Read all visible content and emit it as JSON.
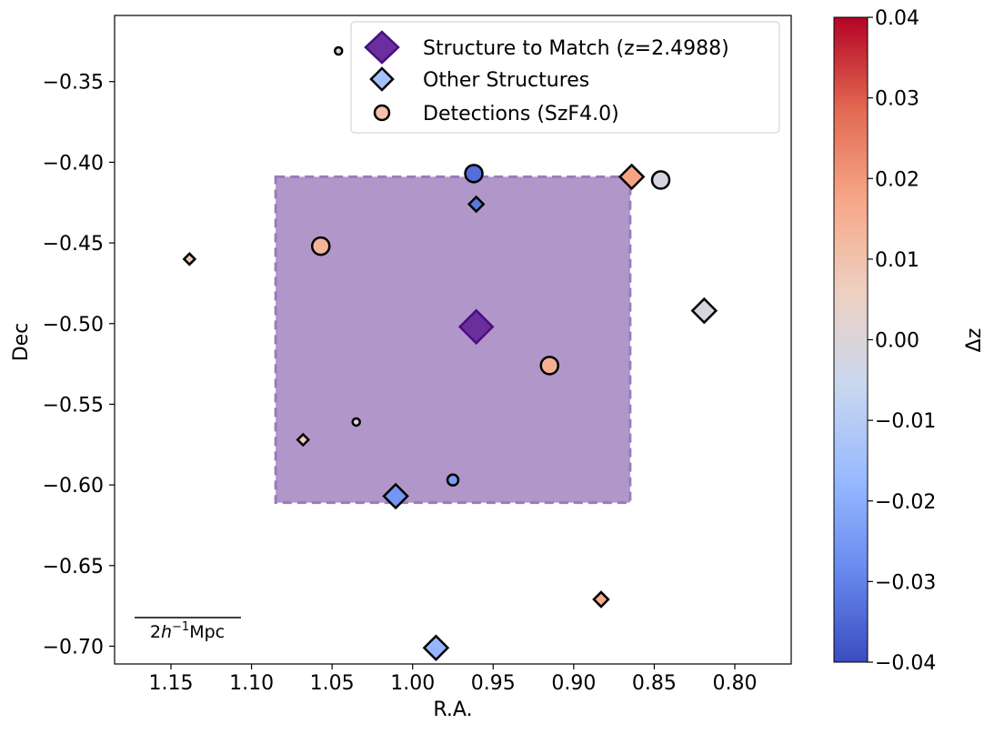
{
  "chart_data": {
    "type": "scatter",
    "xlabel": "R.A.",
    "ylabel": "Dec",
    "xlim": [
      1.185,
      0.765
    ],
    "ylim": [
      -0.711,
      -0.309
    ],
    "xticks": [
      1.15,
      1.1,
      1.05,
      1.0,
      0.95,
      0.9,
      0.85,
      0.8
    ],
    "xtick_labels": [
      "1.15",
      "1.10",
      "1.05",
      "1.00",
      "0.95",
      "0.90",
      "0.85",
      "0.80"
    ],
    "yticks": [
      -0.35,
      -0.4,
      -0.45,
      -0.5,
      -0.55,
      -0.6,
      -0.65,
      -0.7
    ],
    "ytick_labels": [
      "−0.35",
      "−0.40",
      "−0.45",
      "−0.50",
      "−0.55",
      "−0.60",
      "−0.65",
      "−0.70"
    ],
    "region": {
      "ra_min": 0.865,
      "ra_max": 1.085,
      "dec_min": -0.611,
      "dec_max": -0.409,
      "color": "#b096c9",
      "edge_color": "#9a7bbd"
    },
    "match_structure": {
      "label": "Structure to Match (z=2.4988)",
      "ra": 0.9605,
      "dec": -0.502,
      "color": "#6a2f9c",
      "edge_color": "#4a0e80"
    },
    "other_structures": [
      {
        "ra": 0.9855,
        "dec": -0.701,
        "dz": -0.018
      },
      {
        "ra": 0.9605,
        "dec": -0.426,
        "dz": -0.032
      },
      {
        "ra": 1.1385,
        "dec": -0.46,
        "dz": 0.008
      },
      {
        "ra": 0.864,
        "dec": -0.409,
        "dz": 0.018
      },
      {
        "ra": 0.819,
        "dec": -0.492,
        "dz": -0.002
      },
      {
        "ra": 1.0105,
        "dec": -0.607,
        "dz": -0.026
      },
      {
        "ra": 1.068,
        "dec": -0.572,
        "dz": 0.007
      },
      {
        "ra": 0.883,
        "dec": -0.671,
        "dz": 0.016
      }
    ],
    "detections": [
      {
        "ra": 1.046,
        "dec": -0.331,
        "dz": 0.0,
        "size": "small"
      },
      {
        "ra": 0.962,
        "dec": -0.407,
        "dz": -0.034,
        "size": "large"
      },
      {
        "ra": 0.846,
        "dec": -0.411,
        "dz": -0.002,
        "size": "large"
      },
      {
        "ra": 1.057,
        "dec": -0.452,
        "dz": 0.014,
        "size": "large"
      },
      {
        "ra": 0.915,
        "dec": -0.526,
        "dz": 0.015,
        "size": "large"
      },
      {
        "ra": 1.035,
        "dec": -0.561,
        "dz": 0.0,
        "size": "small"
      },
      {
        "ra": 0.975,
        "dec": -0.597,
        "dz": -0.024,
        "size": "medium"
      }
    ],
    "legend": {
      "position": "top-right",
      "entries": [
        {
          "label": "Structure to Match (z=2.4988)",
          "marker": "diamond",
          "color": "#6a2f9c",
          "edge_color": "#4a0e80"
        },
        {
          "label": "Other Structures",
          "marker": "diamond",
          "color": "#a5c1fb",
          "edge_color": "#000000"
        },
        {
          "label": "Detections (SzF4.0)",
          "marker": "circle",
          "color": "#f7c0a8",
          "edge_color": "#000000"
        }
      ]
    },
    "scale_bar": {
      "label": "2h⁻¹Mpc",
      "math_h": "h",
      "math_sup": "−1",
      "math_unit": "Mpc"
    },
    "colorbar": {
      "label": "Δz",
      "cmap": "coolwarm",
      "range": [
        -0.04,
        0.04
      ],
      "ticks": [
        0.04,
        0.03,
        0.02,
        0.01,
        0.0,
        -0.01,
        -0.02,
        -0.03,
        -0.04
      ],
      "tick_labels": [
        "0.04",
        "0.03",
        "0.02",
        "0.01",
        "0.00",
        "−0.01",
        "−0.02",
        "−0.03",
        "−0.04"
      ],
      "stops": [
        "#3b4cc0",
        "#688aef",
        "#99baff",
        "#c9d7ef",
        "#edd1c2",
        "#f7a889",
        "#e26952",
        "#b40426"
      ]
    }
  }
}
